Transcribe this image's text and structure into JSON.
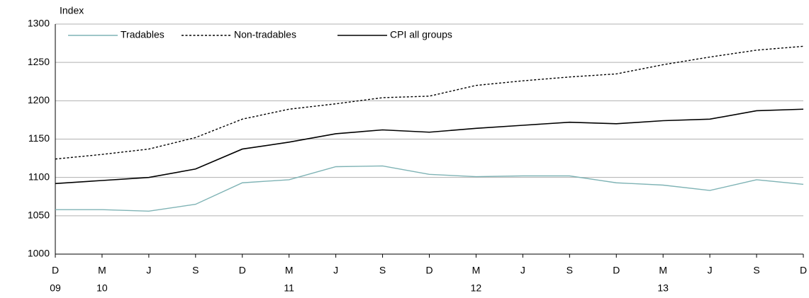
{
  "chart_data": {
    "type": "line",
    "y_axis_label": "Index",
    "categories": [
      "D",
      "M",
      "J",
      "S",
      "D",
      "M",
      "J",
      "S",
      "D",
      "M",
      "J",
      "S",
      "D",
      "M",
      "J",
      "S",
      "D"
    ],
    "years": [
      "09",
      "10",
      null,
      null,
      null,
      "11",
      null,
      null,
      null,
      "12",
      null,
      null,
      null,
      "13",
      null,
      null,
      null
    ],
    "series": [
      {
        "name": "Tradables",
        "color": "#7fb3b5",
        "dash": null,
        "values": [
          1058,
          1058,
          1056,
          1065,
          1093,
          1097,
          1114,
          1115,
          1104,
          1101,
          1102,
          1102,
          1093,
          1090,
          1083,
          1097,
          1091
        ]
      },
      {
        "name": "Non-tradables",
        "color": "#000000",
        "dash": "3,2.5",
        "values": [
          1124,
          1130,
          1137,
          1152,
          1176,
          1189,
          1196,
          1204,
          1206,
          1220,
          1226,
          1231,
          1235,
          1247,
          1257,
          1266,
          1271
        ]
      },
      {
        "name": "CPI all groups",
        "color": "#000000",
        "dash": null,
        "values": [
          1092,
          1096,
          1100,
          1111,
          1137,
          1146,
          1157,
          1162,
          1159,
          1164,
          1168,
          1172,
          1170,
          1174,
          1176,
          1187,
          1189
        ]
      }
    ],
    "ylim": [
      1000,
      1300
    ],
    "yticks": [
      1000,
      1050,
      1100,
      1150,
      1200,
      1250,
      1300
    ],
    "grid": true
  }
}
